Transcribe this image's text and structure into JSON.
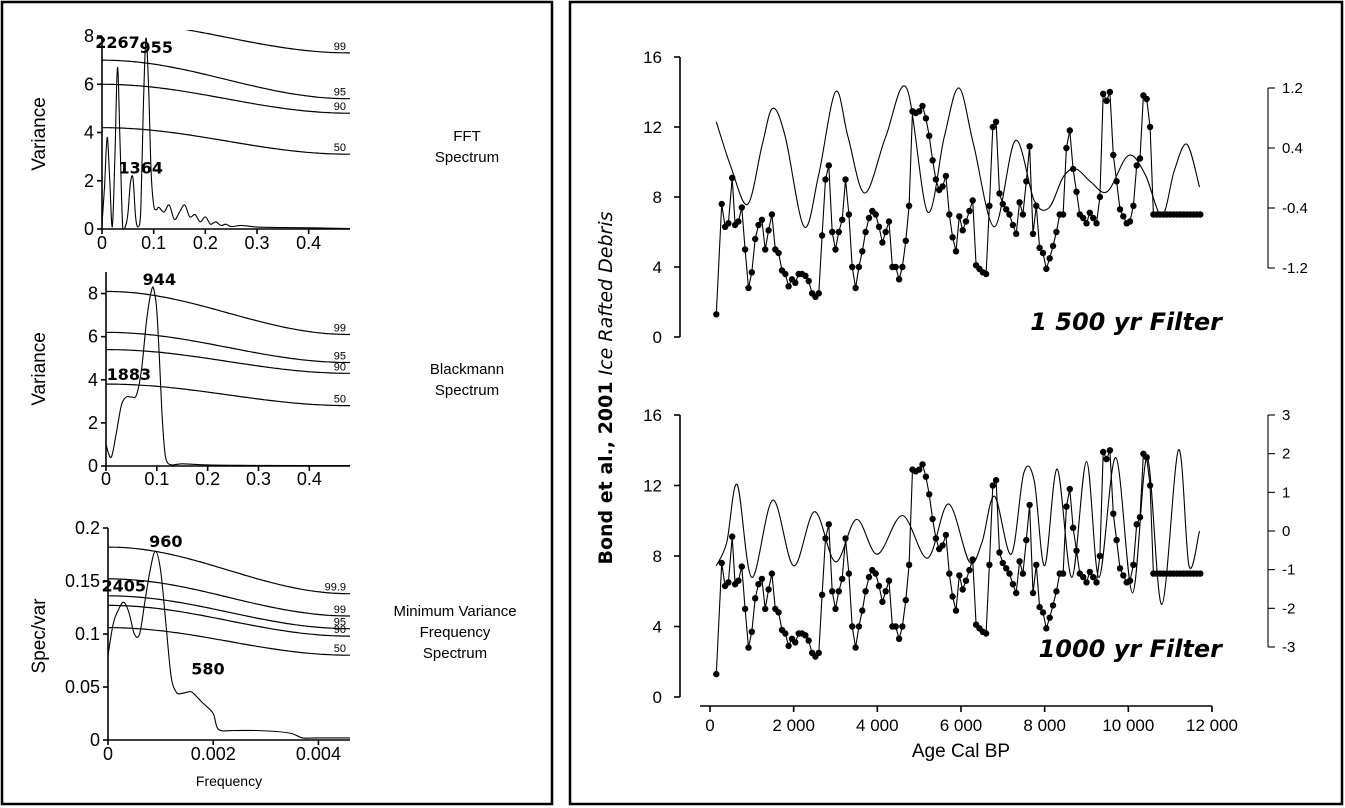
{
  "chart_data": [
    {
      "id": "fft",
      "type": "line",
      "ylabel": "Variance",
      "xlabel": "",
      "side_label": [
        "FFT",
        "Spectrum"
      ],
      "xlim": [
        0,
        0.48
      ],
      "ylim": [
        0,
        8
      ],
      "x_ticks": [
        0,
        0.1,
        0.2,
        0.3,
        0.4
      ],
      "x_tick_labels": [
        "0",
        "0.1",
        "0.2",
        "0.3",
        "0.4"
      ],
      "y_ticks": [
        0,
        2,
        4,
        6,
        8
      ],
      "y_tick_labels": [
        "0",
        "2",
        "4",
        "6",
        "8"
      ],
      "spectrum": {
        "x": [
          0,
          0.005,
          0.01,
          0.015,
          0.02,
          0.025,
          0.03,
          0.035,
          0.04,
          0.045,
          0.05,
          0.055,
          0.06,
          0.065,
          0.07,
          0.075,
          0.08,
          0.085,
          0.09,
          0.095,
          0.1,
          0.105,
          0.11,
          0.12,
          0.13,
          0.14,
          0.15,
          0.16,
          0.17,
          0.18,
          0.19,
          0.2,
          0.21,
          0.22,
          0.23,
          0.24,
          0.25,
          0.27,
          0.3,
          0.35,
          0.4,
          0.45,
          0.48
        ],
        "y": [
          0.2,
          1.8,
          3.8,
          2.0,
          0.1,
          3.0,
          6.7,
          3.5,
          0.1,
          0.1,
          0.6,
          1.9,
          2.1,
          0.5,
          0.1,
          0.8,
          5.0,
          7.9,
          6.0,
          2.4,
          1.0,
          0.8,
          0.9,
          0.7,
          1.0,
          0.4,
          0.7,
          1.0,
          0.5,
          0.6,
          0.3,
          0.5,
          0.2,
          0.3,
          0.15,
          0.2,
          0.1,
          0.15,
          0.08,
          0.06,
          0.05,
          0.03,
          0.02
        ]
      },
      "significance": [
        {
          "label": "99",
          "start": 8.6,
          "end": 7.3
        },
        {
          "label": "95",
          "start": 7.0,
          "end": 5.4
        },
        {
          "label": "90",
          "start": 6.0,
          "end": 4.8
        },
        {
          "label": "50",
          "start": 4.2,
          "end": 3.1
        }
      ],
      "peaks": [
        {
          "label": "2267",
          "x": 0.03,
          "y": 7.5
        },
        {
          "label": "955",
          "x": 0.105,
          "y": 7.3
        },
        {
          "label": "1364",
          "x": 0.075,
          "y": 2.3
        }
      ]
    },
    {
      "id": "blackmann",
      "type": "line",
      "ylabel": "Variance",
      "xlabel": "",
      "side_label": [
        "Blackmann",
        "Spectrum"
      ],
      "xlim": [
        0,
        0.48
      ],
      "ylim": [
        0,
        9
      ],
      "x_ticks": [
        0,
        0.1,
        0.2,
        0.3,
        0.4
      ],
      "x_tick_labels": [
        "0",
        "0.1",
        "0.2",
        "0.3",
        "0.4"
      ],
      "y_ticks": [
        0,
        2,
        4,
        6,
        8
      ],
      "y_tick_labels": [
        "0",
        "2",
        "4",
        "6",
        "8"
      ],
      "spectrum": {
        "x": [
          0,
          0.01,
          0.02,
          0.03,
          0.04,
          0.05,
          0.06,
          0.07,
          0.08,
          0.09,
          0.095,
          0.1,
          0.105,
          0.11,
          0.115,
          0.12,
          0.13,
          0.15,
          0.2,
          0.3,
          0.48
        ],
        "y": [
          1.0,
          0.4,
          1.5,
          2.8,
          3.2,
          3.2,
          3.3,
          4.5,
          6.8,
          8.2,
          8.1,
          7.2,
          5.0,
          2.5,
          0.8,
          0.2,
          0.05,
          0.1,
          0.05,
          0.03,
          0.02
        ]
      },
      "significance": [
        {
          "label": "99",
          "start": 8.1,
          "end": 6.1
        },
        {
          "label": "95",
          "start": 6.2,
          "end": 4.8
        },
        {
          "label": "90",
          "start": 5.4,
          "end": 4.3
        },
        {
          "label": "50",
          "start": 3.8,
          "end": 2.8
        }
      ],
      "peaks": [
        {
          "label": "944",
          "x": 0.105,
          "y": 8.4
        },
        {
          "label": "1883",
          "x": 0.045,
          "y": 4.0
        }
      ]
    },
    {
      "id": "mvfs",
      "type": "line",
      "ylabel": "Spec/var",
      "xlabel": "Frequency",
      "side_label": [
        "Minimum Variance",
        "Frequency",
        "Spectrum"
      ],
      "xlim": [
        0,
        0.0046
      ],
      "ylim": [
        0,
        0.2
      ],
      "x_ticks": [
        0,
        0.002,
        0.004
      ],
      "x_tick_labels": [
        "0",
        "0.002",
        "0.004"
      ],
      "y_ticks": [
        0,
        0.05,
        0.1,
        0.15,
        0.2
      ],
      "y_tick_labels": [
        "0",
        "0.05",
        "0.1",
        "0.15",
        "0.2"
      ],
      "spectrum": {
        "x": [
          0,
          0.0001,
          0.0002,
          0.0003,
          0.0004,
          0.0005,
          0.0006,
          0.0007,
          0.0008,
          0.0009,
          0.001,
          0.0011,
          0.0012,
          0.0013,
          0.0014,
          0.0015,
          0.0016,
          0.0018,
          0.002,
          0.0021,
          0.0024,
          0.0028,
          0.0032,
          0.0035,
          0.0037,
          0.004,
          0.0046
        ],
        "y": [
          0.08,
          0.11,
          0.123,
          0.13,
          0.12,
          0.1,
          0.1,
          0.13,
          0.16,
          0.178,
          0.16,
          0.11,
          0.06,
          0.045,
          0.044,
          0.045,
          0.045,
          0.035,
          0.025,
          0.01,
          0.009,
          0.009,
          0.008,
          0.006,
          0.002,
          0.002,
          0.002
        ]
      },
      "significance": [
        {
          "label": "99.9",
          "start": 0.182,
          "end": 0.138
        },
        {
          "label": "99",
          "start": 0.152,
          "end": 0.117
        },
        {
          "label": "95",
          "start": 0.136,
          "end": 0.105
        },
        {
          "label": "90",
          "start": 0.127,
          "end": 0.098
        },
        {
          "label": "50",
          "start": 0.106,
          "end": 0.08
        }
      ],
      "peaks": [
        {
          "label": "960",
          "x": 0.0011,
          "y": 0.182
        },
        {
          "label": "2405",
          "x": 0.0003,
          "y": 0.14
        },
        {
          "label": "580",
          "x": 0.0019,
          "y": 0.062
        }
      ]
    },
    {
      "id": "filter1500",
      "type": "line",
      "title": "1 500 yr Filter",
      "xlim": [
        0,
        12000
      ],
      "ylim": [
        0,
        16
      ],
      "y_ticks": [
        0,
        4,
        8,
        12,
        16
      ],
      "y_tick_labels": [
        "0",
        "4",
        "8",
        "12",
        "16"
      ],
      "right_axis": {
        "ylim": [
          -1.2,
          1.2
        ],
        "ticks": [
          -1.2,
          -0.4,
          0.4,
          1.2
        ],
        "tick_labels": [
          "-1.2",
          "-0.4",
          "0.4",
          "1.2"
        ]
      },
      "filtered": {
        "x": [
          150,
          500,
          900,
          1250,
          1500,
          1800,
          2250,
          2600,
          3000,
          3300,
          3700,
          4200,
          4700,
          5200,
          5600,
          5950,
          6300,
          6800,
          7300,
          7750,
          8100,
          8450,
          8750,
          9100,
          9500,
          10000,
          10400,
          10800,
          11100,
          11400,
          11700
        ],
        "y": [
          0.75,
          0.15,
          -0.35,
          0.45,
          0.93,
          0.55,
          -0.65,
          0.05,
          1.15,
          0.55,
          -0.2,
          0.55,
          1.2,
          -0.45,
          0.55,
          1.2,
          0.45,
          -0.65,
          0.5,
          -0.3,
          -0.4,
          0.02,
          0.12,
          -0.05,
          -0.18,
          0.3,
          0.05,
          -0.5,
          0.1,
          0.45,
          -0.12
        ]
      },
      "ird": {
        "x": [
          150,
          280,
          360,
          440,
          530,
          600,
          680,
          760,
          840,
          920,
          1000,
          1080,
          1160,
          1240,
          1320,
          1400,
          1480,
          1560,
          1640,
          1720,
          1800,
          1880,
          1960,
          2040,
          2120,
          2200,
          2280,
          2360,
          2440,
          2520,
          2600,
          2680,
          2760,
          2840,
          2920,
          3000,
          3080,
          3160,
          3240,
          3320,
          3400,
          3480,
          3560,
          3640,
          3720,
          3800,
          3880,
          3960,
          4040,
          4120,
          4200,
          4280,
          4360,
          4440,
          4520,
          4600,
          4680,
          4760,
          4840,
          4920,
          5000,
          5080,
          5160,
          5240,
          5320,
          5400,
          5480,
          5560,
          5640,
          5720,
          5800,
          5880,
          5960,
          6040,
          6120,
          6200,
          6280,
          6360,
          6440,
          6520,
          6600,
          6680,
          6760,
          6840,
          6920,
          7000,
          7080,
          7160,
          7240,
          7320,
          7400,
          7480,
          7560,
          7640,
          7720,
          7800,
          7880,
          7960,
          8040,
          8120,
          8200,
          8280,
          8360,
          8440,
          8520,
          8600,
          8680,
          8760,
          8840,
          8920,
          9000,
          9080,
          9160,
          9240,
          9320,
          9400,
          9480,
          9560,
          9640,
          9720,
          9800,
          9880,
          9960,
          10040,
          10120,
          10200,
          10280,
          10360,
          10440,
          10520,
          10600,
          10680,
          10760,
          10840,
          10920,
          11000,
          11080,
          11160,
          11240,
          11320,
          11400,
          11480,
          11560,
          11640,
          11720
        ],
        "y": [
          1.3,
          7.6,
          6.3,
          6.5,
          9.1,
          6.4,
          6.6,
          7.4,
          5.0,
          2.8,
          3.7,
          5.6,
          6.4,
          6.7,
          5.0,
          6.1,
          7.0,
          5.0,
          4.8,
          3.8,
          3.6,
          2.9,
          3.3,
          3.1,
          3.6,
          3.6,
          3.5,
          3.2,
          2.5,
          2.3,
          2.5,
          5.8,
          9.0,
          9.8,
          6.0,
          5.0,
          6.0,
          6.7,
          9.0,
          7.0,
          4.0,
          2.8,
          4.0,
          4.9,
          6.0,
          6.8,
          7.2,
          7.0,
          6.3,
          5.4,
          6.0,
          6.6,
          4.0,
          4.0,
          3.3,
          4.0,
          5.5,
          7.5,
          12.9,
          12.8,
          12.9,
          13.2,
          12.5,
          11.5,
          10.1,
          9.0,
          8.4,
          8.6,
          9.2,
          7.0,
          5.7,
          4.9,
          6.9,
          6.1,
          6.6,
          7.2,
          7.8,
          4.1,
          3.9,
          3.7,
          3.6,
          7.5,
          12.0,
          12.3,
          8.2,
          7.6,
          7.3,
          7.0,
          6.4,
          5.9,
          7.7,
          7.0,
          8.9,
          10.9,
          5.9,
          7.5,
          5.1,
          4.8,
          3.9,
          4.5,
          5.2,
          6.0,
          7.0,
          7.0,
          10.8,
          11.8,
          9.6,
          8.3,
          7.0,
          6.8,
          6.5,
          7.1,
          6.8,
          6.5,
          8.0,
          13.9,
          13.5,
          14.0,
          10.4,
          8.9,
          7.3,
          6.9,
          6.5,
          6.6,
          7.5,
          9.8,
          10.2,
          13.8,
          13.6,
          12.0,
          7.0,
          7.0,
          7.0,
          7.0,
          7.0,
          7.0,
          7.0,
          7.0,
          7.0,
          7.0,
          7.0,
          7.0,
          7.0,
          7.0,
          7.0
        ]
      }
    },
    {
      "id": "filter1000",
      "type": "line",
      "title": "1000 yr Filter",
      "xlabel": "Age Cal BP",
      "xlim": [
        0,
        12000
      ],
      "ylim": [
        0,
        16
      ],
      "x_ticks": [
        0,
        2000,
        4000,
        6000,
        8000,
        10000,
        12000
      ],
      "x_tick_labels": [
        "0",
        "2 000",
        "4 000",
        "6 000",
        "8 000",
        "10 000",
        "12 000"
      ],
      "y_ticks": [
        0,
        4,
        8,
        12,
        16
      ],
      "y_tick_labels": [
        "0",
        "4",
        "8",
        "12",
        "16"
      ],
      "right_axis": {
        "ylim": [
          -3,
          3
        ],
        "ticks": [
          -3,
          -2,
          -1,
          0,
          1,
          2,
          3
        ],
        "tick_labels": [
          "-3",
          "-2",
          "-1",
          "0",
          "1",
          "2",
          "3"
        ]
      },
      "filtered": {
        "x": [
          150,
          400,
          650,
          1000,
          1500,
          2000,
          2500,
          3000,
          3500,
          4000,
          4600,
          5200,
          5700,
          6200,
          6500,
          6800,
          7200,
          7500,
          7750,
          8000,
          8300,
          8650,
          9000,
          9300,
          9700,
          10100,
          10450,
          10800,
          11200,
          11450,
          11700
        ],
        "y": [
          -0.9,
          -0.3,
          1.2,
          -1.2,
          0.8,
          -0.9,
          0.5,
          -0.8,
          0.3,
          -0.6,
          0.4,
          -0.7,
          0.7,
          -0.8,
          -0.3,
          0.9,
          -0.6,
          1.5,
          1.3,
          -0.9,
          1.6,
          -1.2,
          1.8,
          -1.2,
          1.9,
          -1.6,
          1.9,
          -1.9,
          2.1,
          -0.9,
          0.0
        ]
      },
      "ird_same_as": "filter1500",
      "ylabel_bold": "Bond et al., 2001",
      "ylabel_italic": "Ice Rafted Debris"
    }
  ]
}
